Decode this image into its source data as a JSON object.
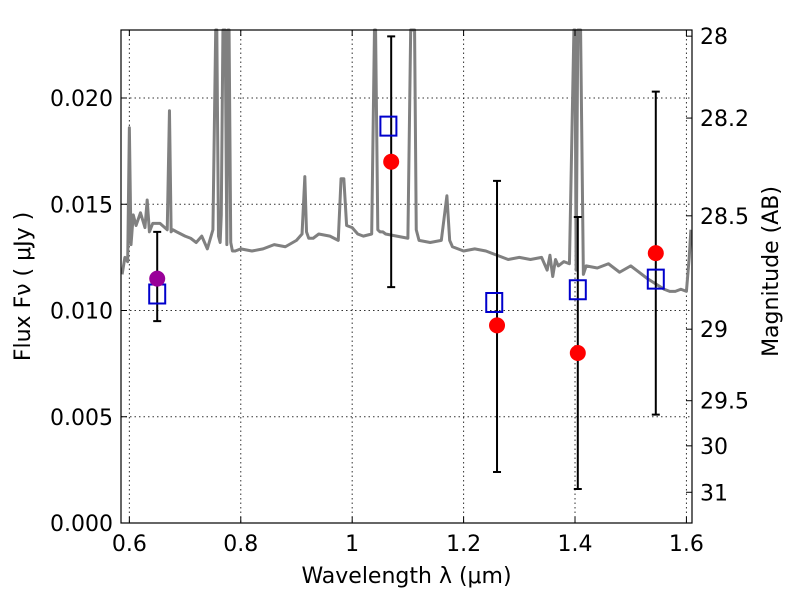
{
  "chart_data": {
    "type": "scatter",
    "xlabel": "Wavelength  λ (μm)",
    "ylabel_left": "Flux  Fν  ( μJy )",
    "ylabel_right": "Magnitude (AB)",
    "xlim": [
      0.585,
      1.61
    ],
    "ylim": [
      0.0,
      0.0232
    ],
    "x_ticks": [
      0.6,
      0.8,
      1.0,
      1.2,
      1.4,
      1.6
    ],
    "x_tick_labels": [
      "0.6",
      "0.8",
      "1",
      "1.2",
      "1.4",
      "1.6"
    ],
    "y_ticks": [
      0.0,
      0.005,
      0.01,
      0.015,
      0.02
    ],
    "y_tick_labels": [
      "0.000",
      "0.005",
      "0.010",
      "0.015",
      "0.020"
    ],
    "right_ticks": [
      {
        "mag": 28,
        "label": "28"
      },
      {
        "mag": 28.2,
        "label": "28.2"
      },
      {
        "mag": 28.5,
        "label": "28.5"
      },
      {
        "mag": 29,
        "label": "29"
      },
      {
        "mag": 29.5,
        "label": "29.5"
      },
      {
        "mag": 30,
        "label": "30"
      },
      {
        "mag": 31,
        "label": "31"
      }
    ],
    "grid": true,
    "colors": {
      "spectrum": "#808080",
      "observed": "#ff0000",
      "observed_first": "#990099",
      "model": "#0000cc",
      "errorbar": "#000000"
    },
    "observed_points": [
      {
        "x": 0.65,
        "y": 0.0115,
        "yerr_low": 0.0095,
        "yerr_high": 0.0137
      },
      {
        "x": 1.07,
        "y": 0.017,
        "yerr_low": 0.0111,
        "yerr_high": 0.0229
      },
      {
        "x": 1.26,
        "y": 0.0093,
        "yerr_low": 0.0024,
        "yerr_high": 0.0161
      },
      {
        "x": 1.405,
        "y": 0.008,
        "yerr_low": 0.0016,
        "yerr_high": 0.0144
      },
      {
        "x": 1.545,
        "y": 0.0127,
        "yerr_low": 0.0051,
        "yerr_high": 0.0203
      }
    ],
    "model_points": [
      {
        "x": 0.65,
        "y": 0.0108
      },
      {
        "x": 1.065,
        "y": 0.0187
      },
      {
        "x": 1.255,
        "y": 0.0104
      },
      {
        "x": 1.405,
        "y": 0.011
      },
      {
        "x": 1.545,
        "y": 0.0115
      }
    ],
    "spectrum": {
      "x": [
        0.587,
        0.592,
        0.597,
        0.6,
        0.603,
        0.607,
        0.612,
        0.62,
        0.628,
        0.632,
        0.636,
        0.642,
        0.655,
        0.668,
        0.672,
        0.675,
        0.678,
        0.685,
        0.7,
        0.71,
        0.72,
        0.73,
        0.74,
        0.75,
        0.755,
        0.757,
        0.76,
        0.763,
        0.765,
        0.768,
        0.772,
        0.775,
        0.777,
        0.779,
        0.782,
        0.785,
        0.79,
        0.8,
        0.82,
        0.84,
        0.86,
        0.88,
        0.9,
        0.91,
        0.915,
        0.918,
        0.922,
        0.93,
        0.94,
        0.96,
        0.975,
        0.98,
        0.985,
        0.99,
        1.0,
        1.01,
        1.02,
        1.035,
        1.04,
        1.042,
        1.046,
        1.05,
        1.055,
        1.06,
        1.08,
        1.1,
        1.105,
        1.108,
        1.112,
        1.115,
        1.12,
        1.14,
        1.16,
        1.17,
        1.175,
        1.18,
        1.2,
        1.22,
        1.24,
        1.26,
        1.28,
        1.3,
        1.32,
        1.34,
        1.35,
        1.355,
        1.36,
        1.365,
        1.37,
        1.38,
        1.39,
        1.398,
        1.4,
        1.402,
        1.405,
        1.41,
        1.415,
        1.42,
        1.44,
        1.46,
        1.48,
        1.5,
        1.53,
        1.56,
        1.57,
        1.58,
        1.59,
        1.6,
        1.605,
        1.608
      ],
      "y": [
        0.0117,
        0.0125,
        0.0123,
        0.0186,
        0.0131,
        0.0145,
        0.014,
        0.0146,
        0.0139,
        0.0152,
        0.0137,
        0.0141,
        0.0141,
        0.0138,
        0.0194,
        0.0137,
        0.0138,
        0.0137,
        0.0135,
        0.0134,
        0.0132,
        0.0135,
        0.0129,
        0.0138,
        0.0232,
        0.0232,
        0.0135,
        0.0132,
        0.0145,
        0.0232,
        0.0232,
        0.0131,
        0.0232,
        0.0232,
        0.0132,
        0.0128,
        0.0128,
        0.0129,
        0.0128,
        0.0129,
        0.0131,
        0.013,
        0.0133,
        0.0136,
        0.0163,
        0.0137,
        0.0134,
        0.0134,
        0.0136,
        0.0135,
        0.0133,
        0.0162,
        0.0162,
        0.014,
        0.0139,
        0.0136,
        0.0135,
        0.0136,
        0.0232,
        0.0232,
        0.0138,
        0.0137,
        0.0137,
        0.0136,
        0.0135,
        0.0134,
        0.0232,
        0.0232,
        0.0232,
        0.0138,
        0.0133,
        0.0132,
        0.0133,
        0.0154,
        0.0133,
        0.013,
        0.0128,
        0.0129,
        0.0128,
        0.0126,
        0.0124,
        0.0125,
        0.0124,
        0.0125,
        0.0119,
        0.0126,
        0.0116,
        0.0124,
        0.0121,
        0.0123,
        0.0122,
        0.0232,
        0.0232,
        0.0119,
        0.0232,
        0.0232,
        0.0117,
        0.0121,
        0.012,
        0.0122,
        0.0118,
        0.0121,
        0.0115,
        0.011,
        0.0109,
        0.0109,
        0.011,
        0.0109,
        0.0125,
        0.0138
      ]
    }
  }
}
